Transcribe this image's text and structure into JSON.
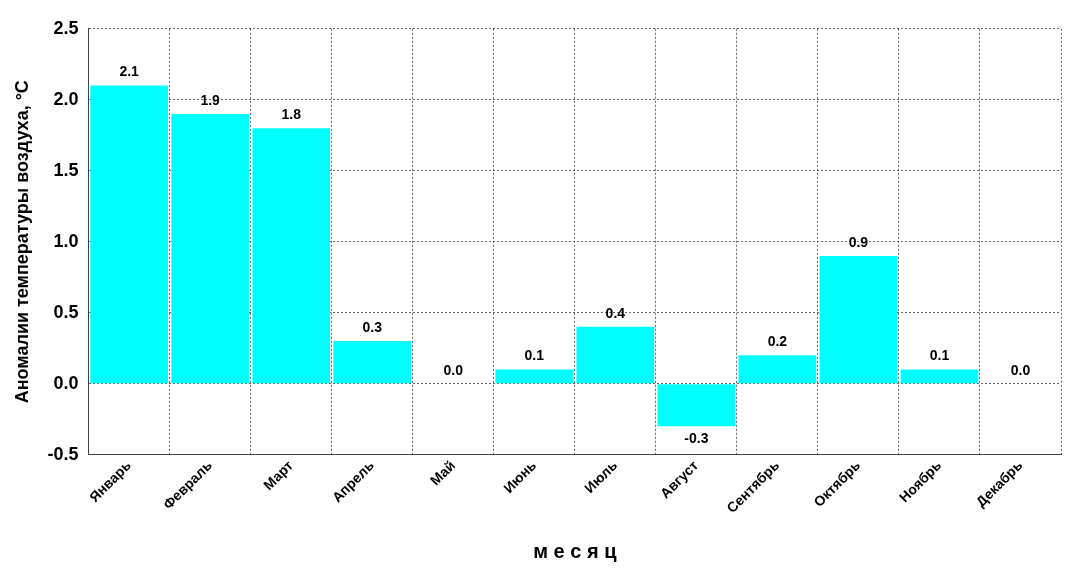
{
  "chart_data": {
    "type": "bar",
    "xlabel": "м е с я ц",
    "ylabel": "Аномалии температуры воздуха, °C",
    "categories": [
      "Январь",
      "Февраль",
      "Март",
      "Апрель",
      "Май",
      "Июнь",
      "Июль",
      "Август",
      "Сентябрь",
      "Октябрь",
      "Ноябрь",
      "Декабрь"
    ],
    "values": [
      2.1,
      1.9,
      1.8,
      0.3,
      0.0,
      0.1,
      0.4,
      -0.3,
      0.2,
      0.9,
      0.1,
      0.0
    ],
    "value_labels": [
      "2.1",
      "1.9",
      "1.8",
      "0.3",
      "0.0",
      "0.1",
      "0.4",
      "-0.3",
      "0.2",
      "0.9",
      "0.1",
      "0.0"
    ],
    "color": "#00ffff",
    "ylim": [
      -0.5,
      2.5
    ],
    "yticks": [
      -0.5,
      {
        "value": 0,
        "label": "0.0"
      },
      0.5,
      {
        "value": 1,
        "label": "1.0"
      },
      1.5,
      {
        "value": 2,
        "label": "2.0"
      },
      2.5
    ],
    "grid": true,
    "legend": false
  }
}
